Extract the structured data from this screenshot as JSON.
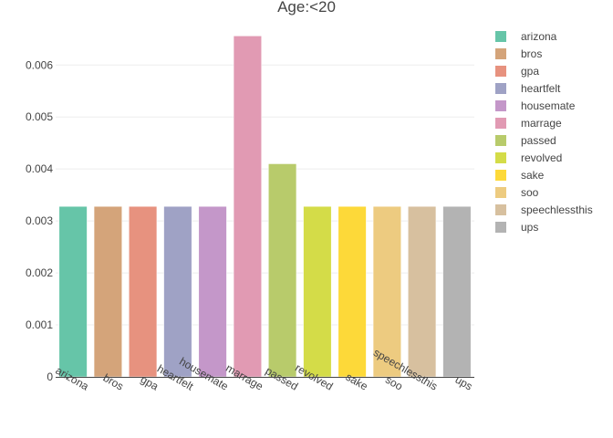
{
  "chart_data": {
    "type": "bar",
    "title": "Age:<20",
    "xlabel": "",
    "ylabel": "",
    "categories": [
      "arizona",
      "bros",
      "gpa",
      "heartfelt",
      "housemate",
      "marrage",
      "passed",
      "revolved",
      "sake",
      "soo",
      "speechlessthis",
      "ups"
    ],
    "values": [
      0.00328,
      0.00328,
      0.00328,
      0.00328,
      0.00328,
      0.00656,
      0.0041,
      0.00328,
      0.00328,
      0.00328,
      0.00328,
      0.00328
    ],
    "colors": [
      "#66c5a8",
      "#d4a47a",
      "#e7927f",
      "#9fa2c5",
      "#c497c9",
      "#e19ab3",
      "#b8cb6b",
      "#d4dc48",
      "#fdd939",
      "#edcb80",
      "#d7c09f",
      "#b3b3b3"
    ],
    "yticks": [
      "0",
      "0.001",
      "0.002",
      "0.003",
      "0.004",
      "0.005",
      "0.006"
    ],
    "ylim": [
      0,
      0.0069
    ],
    "grid": true,
    "legend": "right"
  }
}
